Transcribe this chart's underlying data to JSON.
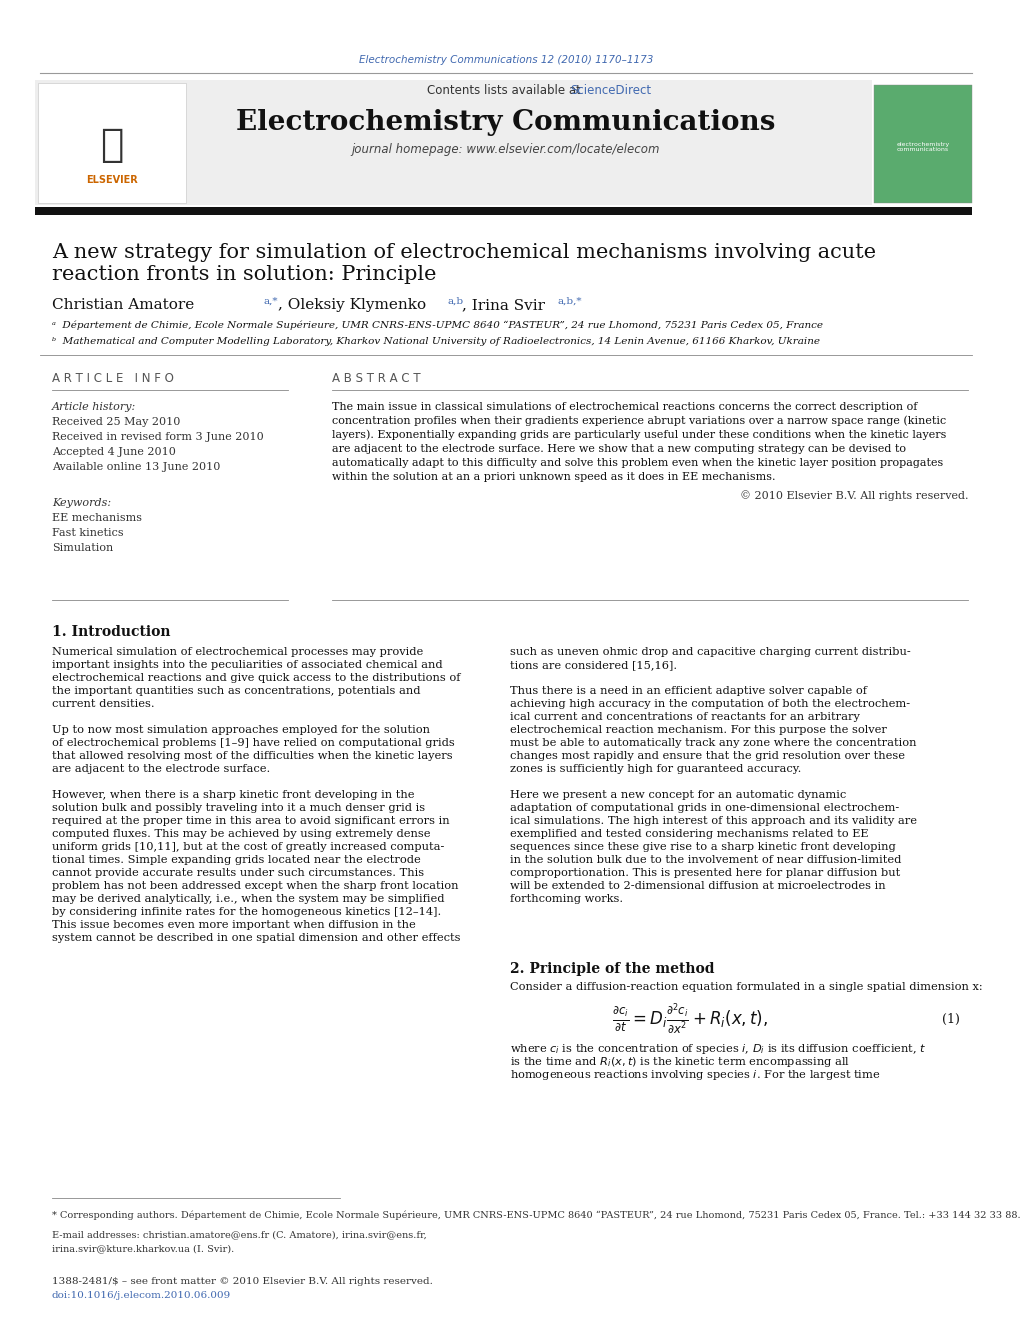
{
  "bg_color": "#ffffff",
  "header_journal_text": "Electrochemistry Communications 12 (2010) 1170–1173",
  "header_journal_color": "#4169b0",
  "contents_text": "Contents lists available at ",
  "sciencedirect_text": "ScienceDirect",
  "sciencedirect_color": "#4169b0",
  "journal_title": "Electrochemistry Communications",
  "journal_homepage": "journal homepage: www.elsevier.com/locate/elecom",
  "header_bg": "#eeeeee",
  "paper_title_line1": "A new strategy for simulation of electrochemical mechanisms involving acute",
  "paper_title_line2": "reaction fronts in solution: Principle",
  "affil_a": "ᵃ  Département de Chimie, Ecole Normale Supérieure, UMR CNRS-ENS-UPMC 8640 “PASTEUR”, 24 rue Lhomond, 75231 Paris Cedex 05, France",
  "affil_b": "ᵇ  Mathematical and Computer Modelling Laboratory, Kharkov National University of Radioelectronics, 14 Lenin Avenue, 61166 Kharkov, Ukraine",
  "article_info_header": "A R T I C L E   I N F O",
  "abstract_header": "A B S T R A C T",
  "article_history_label": "Article history:",
  "received": "Received 25 May 2010",
  "revised": "Received in revised form 3 June 2010",
  "accepted": "Accepted 4 June 2010",
  "available": "Available online 13 June 2010",
  "keywords_label": "Keywords:",
  "kw1": "EE mechanisms",
  "kw2": "Fast kinetics",
  "kw3": "Simulation",
  "copyright": "© 2010 Elsevier B.V. All rights reserved.",
  "intro_header": "1. Introduction",
  "method_header": "2. Principle of the method",
  "method_text": "Consider a diffusion-reaction equation formulated in a single spatial dimension x:",
  "footnote_star": "* Corresponding authors. Département de Chimie, Ecole Normale Supérieure, UMR CNRS-ENS-UPMC 8640 “PASTEUR”, 24 rue Lhomond, 75231 Paris Cedex 05, France. Tel.: +33 144 32 33 88.",
  "footnote_email": "E-mail addresses: christian.amatore@ens.fr (C. Amatore), irina.svir@ens.fr,",
  "footnote_email2": "irina.svir@kture.kharkov.ua (I. Svir).",
  "footer_left": "1388-2481/$ – see front matter © 2010 Elsevier B.V. All rights reserved.",
  "footer_doi": "doi:10.1016/j.elecom.2010.06.009",
  "abstract_lines": [
    "The main issue in classical simulations of electrochemical reactions concerns the correct description of",
    "concentration profiles when their gradients experience abrupt variations over a narrow space range (kinetic",
    "layers). Exponentially expanding grids are particularly useful under these conditions when the kinetic layers",
    "are adjacent to the electrode surface. Here we show that a new computing strategy can be devised to",
    "automatically adapt to this difficulty and solve this problem even when the kinetic layer position propagates",
    "within the solution at an a priori unknown speed as it does in EE mechanisms."
  ],
  "intro_left_lines": [
    "Numerical simulation of electrochemical processes may provide",
    "important insights into the peculiarities of associated chemical and",
    "electrochemical reactions and give quick access to the distributions of",
    "the important quantities such as concentrations, potentials and",
    "current densities.",
    "",
    "Up to now most simulation approaches employed for the solution",
    "of electrochemical problems [1–9] have relied on computational grids",
    "that allowed resolving most of the difficulties when the kinetic layers",
    "are adjacent to the electrode surface.",
    "",
    "However, when there is a sharp kinetic front developing in the",
    "solution bulk and possibly traveling into it a much denser grid is",
    "required at the proper time in this area to avoid significant errors in",
    "computed fluxes. This may be achieved by using extremely dense",
    "uniform grids [10,11], but at the cost of greatly increased computa-",
    "tional times. Simple expanding grids located near the electrode",
    "cannot provide accurate results under such circumstances. This",
    "problem has not been addressed except when the sharp front location",
    "may be derived analytically, i.e., when the system may be simplified",
    "by considering infinite rates for the homogeneous kinetics [12–14].",
    "This issue becomes even more important when diffusion in the",
    "system cannot be described in one spatial dimension and other effects"
  ],
  "intro_right_lines": [
    "such as uneven ohmic drop and capacitive charging current distribu-",
    "tions are considered [15,16].",
    "",
    "Thus there is a need in an efficient adaptive solver capable of",
    "achieving high accuracy in the computation of both the electrochem-",
    "ical current and concentrations of reactants for an arbitrary",
    "electrochemical reaction mechanism. For this purpose the solver",
    "must be able to automatically track any zone where the concentration",
    "changes most rapidly and ensure that the grid resolution over these",
    "zones is sufficiently high for guaranteed accuracy.",
    "",
    "Here we present a new concept for an automatic dynamic",
    "adaptation of computational grids in one-dimensional electrochem-",
    "ical simulations. The high interest of this approach and its validity are",
    "exemplified and tested considering mechanisms related to EE",
    "sequences since these give rise to a sharp kinetic front developing",
    "in the solution bulk due to the involvement of near diffusion-limited",
    "comproportionation. This is presented here for planar diffusion but",
    "will be extended to 2-dimensional diffusion at microelectrodes in",
    "forthcoming works."
  ],
  "eq_desc_lines": [
    "where $c_i$ is the concentration of species $i$, $D_i$ is its diffusion coefficient, $t$",
    "is the time and $R_i(x,t)$ is the kinetic term encompassing all",
    "homogeneous reactions involving species $i$. For the largest time"
  ]
}
